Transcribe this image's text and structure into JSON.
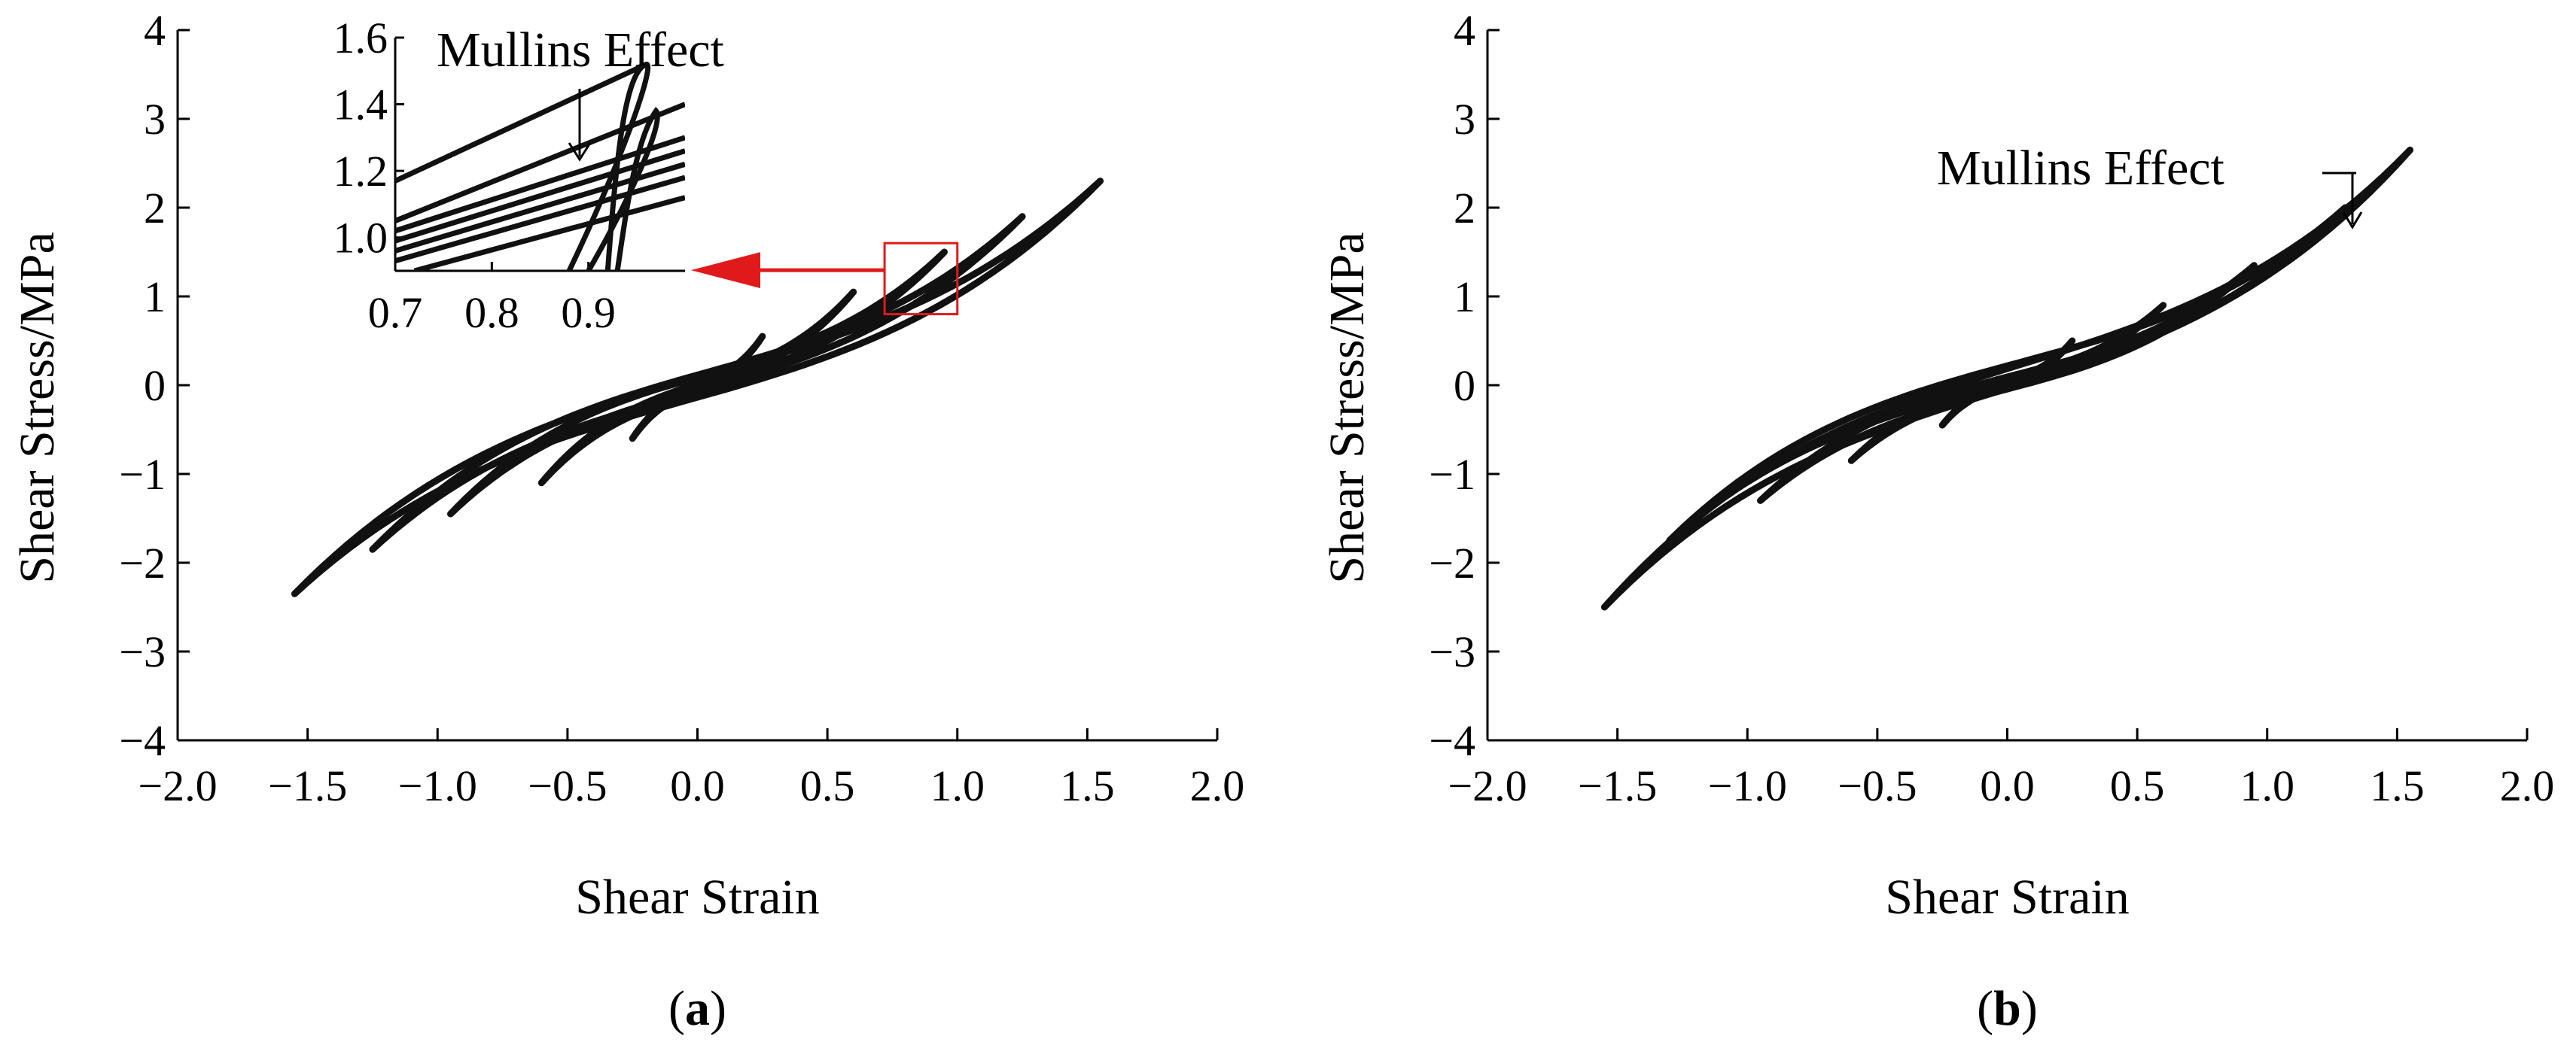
{
  "chart_data": [
    {
      "panel_label": "(a)",
      "panel_letter": "a",
      "type": "line",
      "xlabel": "Shear Strain",
      "ylabel": "Shear Stress/MPa",
      "xlim": [
        -2.0,
        2.0
      ],
      "ylim": [
        -4,
        4
      ],
      "xticks": [
        "−2.0",
        "−1.5",
        "−1.0",
        "−0.5",
        "0.0",
        "0.5",
        "1.0",
        "1.5",
        "2.0"
      ],
      "yticks": [
        "4",
        "3",
        "2",
        "1",
        "0",
        "−1",
        "−2",
        "−3",
        "−4"
      ],
      "grid": false,
      "legend": "none",
      "series": [
        {
          "amplitude": 0.25,
          "peak_stress_pos": 0.55,
          "peak_stress_neg": -0.6
        },
        {
          "amplitude": 0.6,
          "peak_stress_pos": 1.05,
          "peak_stress_neg": -1.1
        },
        {
          "amplitude": 0.95,
          "peak_stress_pos": 1.5,
          "peak_stress_neg": -1.45
        },
        {
          "amplitude": 1.25,
          "peak_stress_pos": 1.9,
          "peak_stress_neg": -1.85
        },
        {
          "amplitude": 1.55,
          "peak_stress_pos": 2.3,
          "peak_stress_neg": -2.35
        }
      ],
      "annotation": "Mullins Effect",
      "inset": {
        "xticks": [
          "0.7",
          "0.8",
          "0.9"
        ],
        "yticks": [
          "1.6",
          "1.4",
          "1.2",
          "1.0"
        ],
        "xlim": [
          0.7,
          1.0
        ],
        "ylim": [
          0.9,
          1.6
        ],
        "highlight_region_x": [
          0.72,
          1.0
        ],
        "highlight_region_y": [
          0.8,
          1.6
        ]
      }
    },
    {
      "panel_label": "(b)",
      "panel_letter": "b",
      "type": "line",
      "xlabel": "Shear Strain",
      "ylabel": "Shear Stress/MPa",
      "xlim": [
        -2.0,
        2.0
      ],
      "ylim": [
        -4,
        4
      ],
      "xticks": [
        "−2.0",
        "−1.5",
        "−1.0",
        "−0.5",
        "0.0",
        "0.5",
        "1.0",
        "1.5",
        "2.0"
      ],
      "yticks": [
        "4",
        "3",
        "2",
        "1",
        "0",
        "−1",
        "−2",
        "−3",
        "−4"
      ],
      "grid": false,
      "legend": "none",
      "series": [
        {
          "amplitude": 0.25,
          "peak_stress_pos": 0.5,
          "peak_stress_neg": -0.45
        },
        {
          "amplitude": 0.6,
          "peak_stress_pos": 0.9,
          "peak_stress_neg": -0.85
        },
        {
          "amplitude": 0.95,
          "peak_stress_pos": 1.35,
          "peak_stress_neg": -1.3
        },
        {
          "amplitude": 1.3,
          "peak_stress_pos": 2.0,
          "peak_stress_neg": -1.75
        },
        {
          "amplitude": 1.55,
          "peak_stress_pos": 2.65,
          "peak_stress_neg": -2.5
        }
      ],
      "annotation": "Mullins Effect"
    }
  ]
}
